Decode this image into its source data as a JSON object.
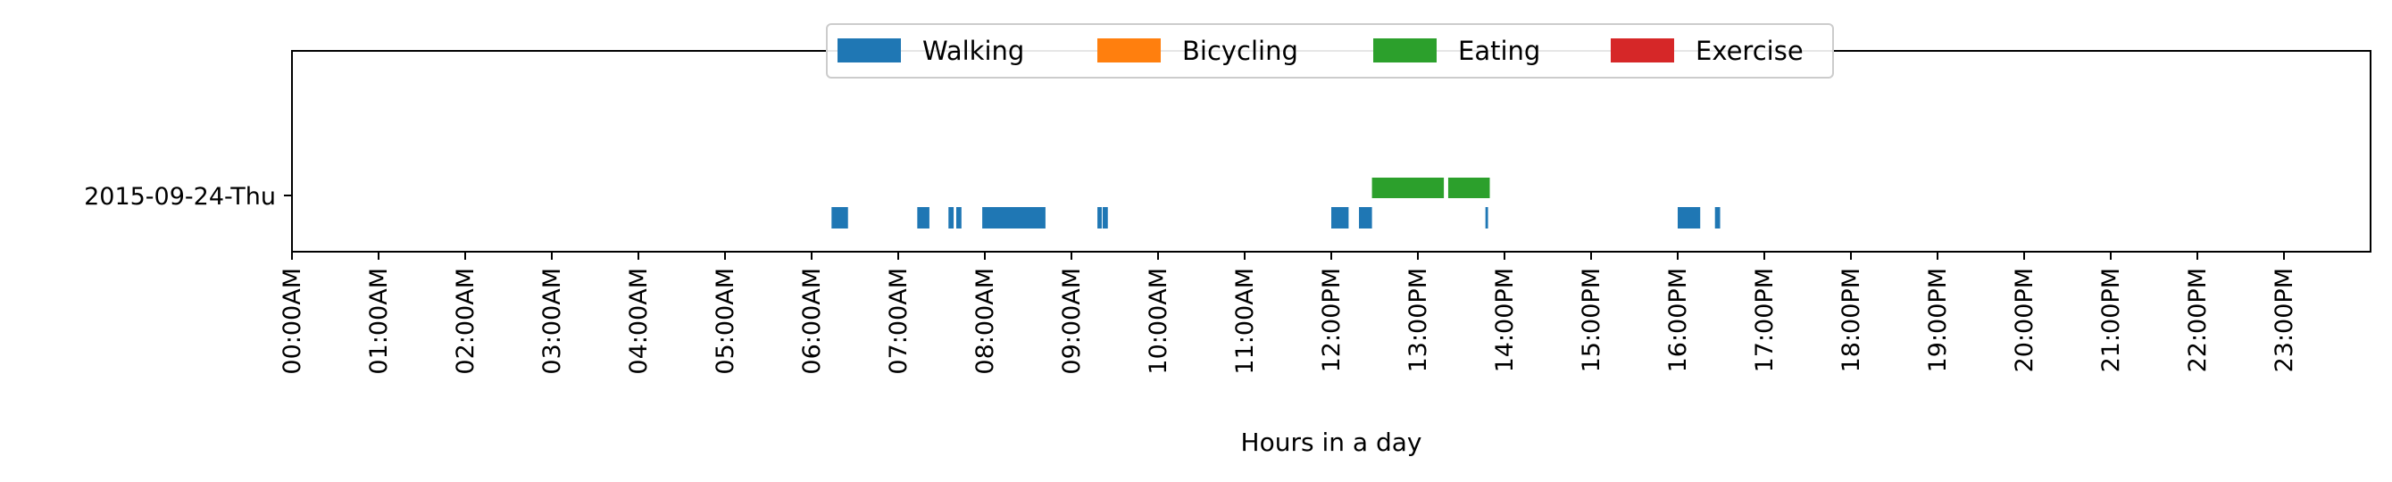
{
  "chart_data": {
    "type": "timeline",
    "title": "",
    "xlabel": "Hours in a day",
    "ylabel": "",
    "xlim": [
      0,
      24
    ],
    "grid": false,
    "legend_placement": "top-center",
    "rows": [
      "2015-09-24-Thu"
    ],
    "x_tick_labels": [
      "00:00AM",
      "01:00AM",
      "02:00AM",
      "03:00AM",
      "04:00AM",
      "05:00AM",
      "06:00AM",
      "07:00AM",
      "08:00AM",
      "09:00AM",
      "10:00AM",
      "11:00AM",
      "12:00PM",
      "13:00PM",
      "14:00PM",
      "15:00PM",
      "16:00PM",
      "17:00PM",
      "18:00PM",
      "19:00PM",
      "20:00PM",
      "21:00PM",
      "22:00PM",
      "23:00PM"
    ],
    "series": [
      {
        "name": "Walking",
        "color": "#1f77b4",
        "lane": "lower",
        "segments": [
          [
            6.23,
            6.42
          ],
          [
            7.22,
            7.36
          ],
          [
            7.58,
            7.64
          ],
          [
            7.67,
            7.73
          ],
          [
            7.97,
            8.7
          ],
          [
            9.3,
            9.35
          ],
          [
            9.36,
            9.42
          ],
          [
            12.0,
            12.2
          ],
          [
            12.32,
            12.47
          ],
          [
            13.78,
            13.81
          ],
          [
            16.0,
            16.26
          ],
          [
            16.43,
            16.49
          ]
        ]
      },
      {
        "name": "Bicycling",
        "color": "#ff7f0e",
        "lane": "lower",
        "segments": []
      },
      {
        "name": "Eating",
        "color": "#2ca02c",
        "lane": "upper",
        "segments": [
          [
            12.47,
            13.3
          ],
          [
            13.35,
            13.83
          ]
        ]
      },
      {
        "name": "Exercise",
        "color": "#d62728",
        "lane": "lower",
        "segments": []
      }
    ]
  }
}
